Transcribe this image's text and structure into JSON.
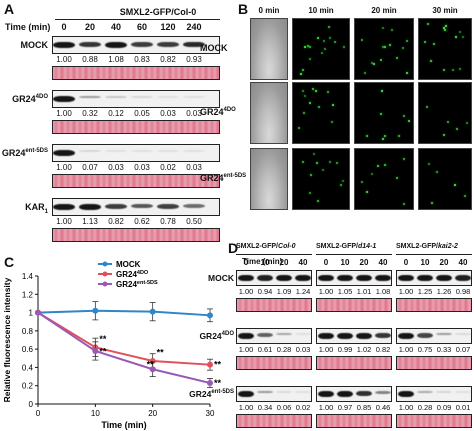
{
  "panels": [
    "A",
    "B",
    "C",
    "D"
  ],
  "panelA": {
    "header": "SMXL2-GFP/Col-0",
    "time_label": "Time (min)",
    "times": [
      "0",
      "20",
      "40",
      "60",
      "120",
      "240"
    ],
    "rows": [
      {
        "label": "MOCK",
        "values": [
          "1.00",
          "0.88",
          "1.08",
          "0.83",
          "0.82",
          "0.93"
        ]
      },
      {
        "label": "GR24",
        "sup": "4DO",
        "values": [
          "1.00",
          "0.32",
          "0.12",
          "0.05",
          "0.03",
          "0.03"
        ]
      },
      {
        "label": "GR24",
        "sup": "ent-5DS",
        "values": [
          "1.00",
          "0.07",
          "0.03",
          "0.03",
          "0.02",
          "0.03"
        ]
      },
      {
        "label": "KAR",
        "sub": "1",
        "values": [
          "1.00",
          "1.13",
          "0.82",
          "0.62",
          "0.78",
          "0.50"
        ]
      }
    ]
  },
  "panelB": {
    "times": [
      "0 min",
      "10 min",
      "20 min",
      "30 min"
    ],
    "rows": [
      {
        "label": "MOCK"
      },
      {
        "label": "GR24",
        "sup": "4DO"
      },
      {
        "label": "GR24",
        "sup": "ent-5DS"
      }
    ]
  },
  "panelD": {
    "time_label": "Time (min)",
    "groups": [
      {
        "header_pre": "SMXL2-GFP/",
        "header_em": "Col-0",
        "times": [
          "0",
          "10",
          "20",
          "40"
        ]
      },
      {
        "header_pre": "SMXL2-GFP/",
        "header_em": "d14-1",
        "times": [
          "0",
          "10",
          "20",
          "40"
        ]
      },
      {
        "header_pre": "SMXL2-GFP/",
        "header_em": "kai2-2",
        "times": [
          "0",
          "10",
          "20",
          "40"
        ]
      }
    ],
    "rows": [
      {
        "label": "MOCK",
        "values": [
          [
            "1.00",
            "0.94",
            "1.09",
            "1.24"
          ],
          [
            "1.00",
            "1.05",
            "1.01",
            "1.08"
          ],
          [
            "1.00",
            "1.25",
            "1.26",
            "0.98"
          ]
        ]
      },
      {
        "label": "GR24",
        "sup": "4DO",
        "values": [
          [
            "1.00",
            "0.61",
            "0.28",
            "0.03"
          ],
          [
            "1.00",
            "0.99",
            "1.02",
            "0.82"
          ],
          [
            "1.00",
            "0.75",
            "0.33",
            "0.07"
          ]
        ]
      },
      {
        "label": "GR24",
        "sup": "ent-5DS",
        "values": [
          [
            "1.00",
            "0.34",
            "0.06",
            "0.02"
          ],
          [
            "1.00",
            "0.97",
            "0.85",
            "0.46"
          ],
          [
            "1.00",
            "0.28",
            "0.09",
            "0.01"
          ]
        ]
      }
    ]
  },
  "chart_data": {
    "type": "line",
    "xlabel": "Time (min)",
    "ylabel": "Relative fluorescence intensity",
    "xlim": [
      0,
      30
    ],
    "ylim": [
      0,
      1.4
    ],
    "xticks": [
      "0",
      "10",
      "20",
      "30"
    ],
    "yticks": [
      "0",
      "0.2",
      "0.4",
      "0.6",
      "0.8",
      "1",
      "1.2",
      "1.4"
    ],
    "x": [
      0,
      10,
      20,
      30
    ],
    "series": [
      {
        "name": "MOCK",
        "sup": "",
        "color": "#2f86c8",
        "values": [
          1.0,
          1.02,
          1.01,
          0.97
        ],
        "err": [
          0,
          0.1,
          0.1,
          0.07
        ]
      },
      {
        "name": "GR24",
        "sup": "4DO",
        "color": "#e0505a",
        "values": [
          1.0,
          0.62,
          0.47,
          0.43
        ],
        "err": [
          0,
          0.1,
          0.08,
          0.06
        ]
      },
      {
        "name": "GR24",
        "sup": "ent-5DS",
        "color": "#9b59b6",
        "values": [
          1.0,
          0.58,
          0.38,
          0.23
        ],
        "err": [
          0,
          0.1,
          0.08,
          0.05
        ]
      }
    ],
    "annotations": [
      "**",
      "**",
      "**",
      "**",
      "**",
      "**"
    ],
    "legend": "top-right"
  }
}
